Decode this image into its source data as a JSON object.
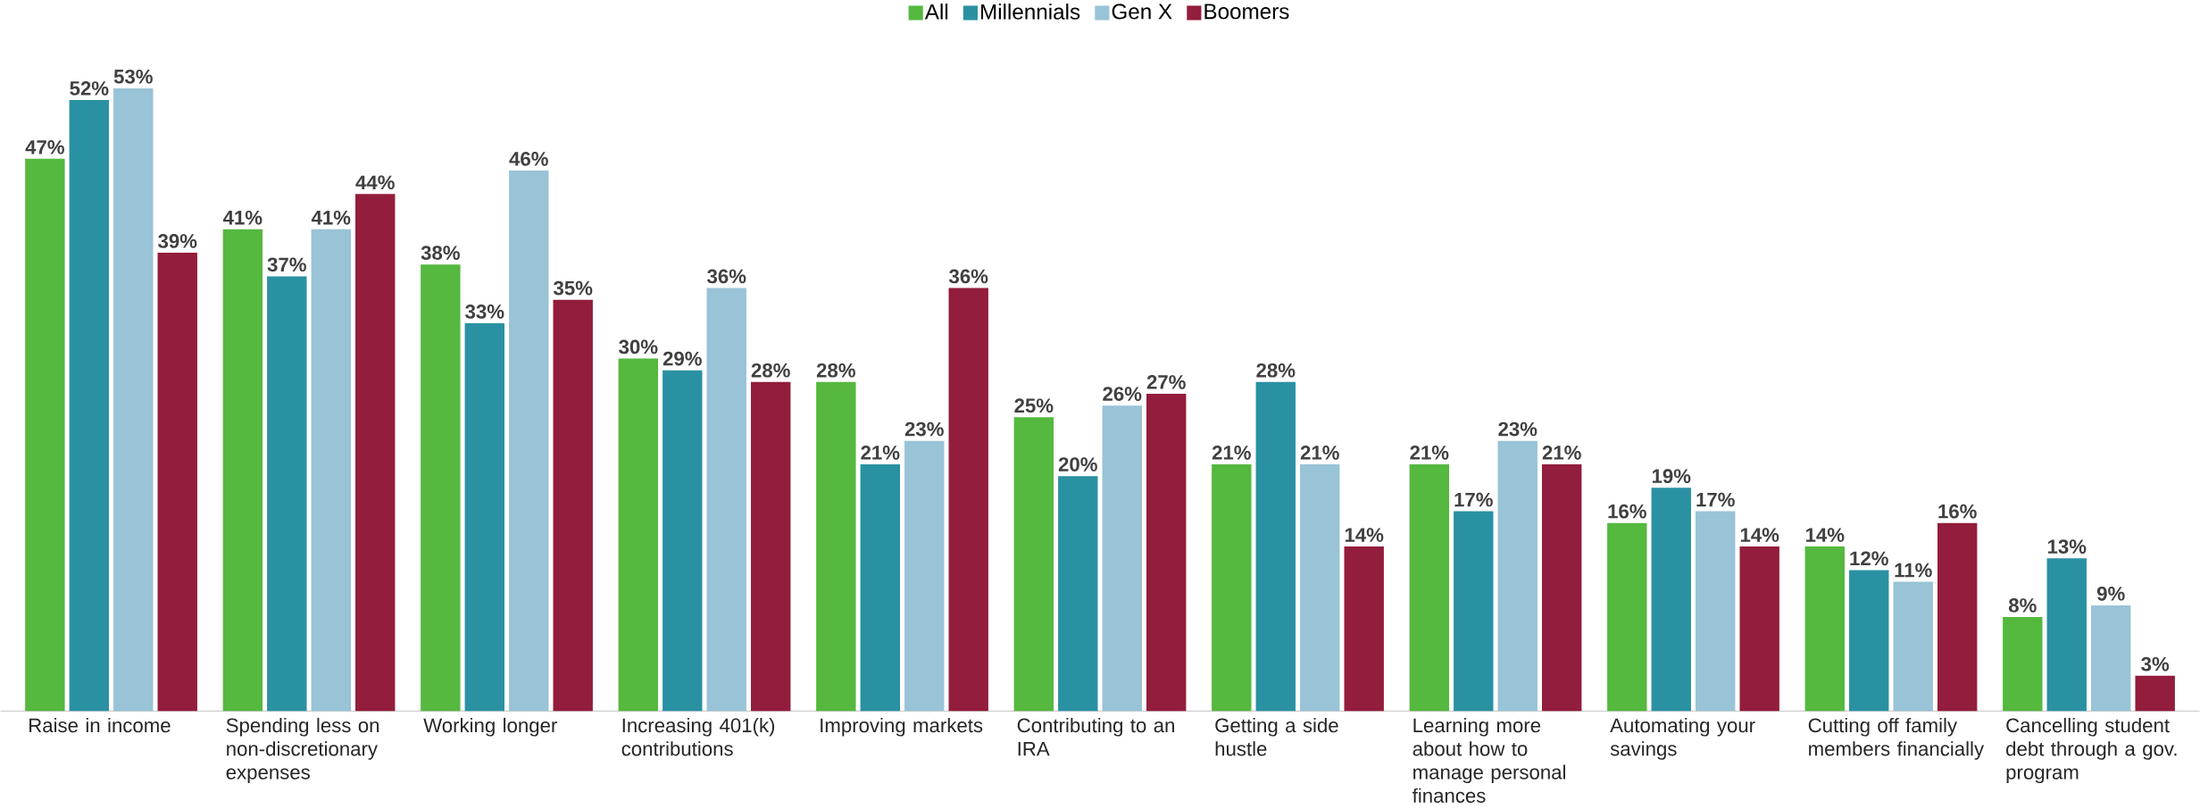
{
  "chart_data": {
    "type": "bar",
    "legend": "top",
    "categories": [
      "Raise in income",
      "Spending less on non-discretionary expenses",
      "Working longer",
      "Increasing 401(k) contributions",
      "Improving markets",
      "Contributing to an IRA",
      "Getting a side hustle",
      "Learning more about how to manage personal finances",
      "Automating your savings",
      "Cutting off family members financially",
      "Cancelling student debt through a gov. program"
    ],
    "series": [
      {
        "name": "All",
        "color": "#55b83f",
        "values": [
          47,
          41,
          38,
          30,
          28,
          25,
          21,
          21,
          16,
          14,
          8
        ],
        "value_labels": [
          "47%",
          "41%",
          "38%",
          "30%",
          "28%",
          "25%",
          "21%",
          "21%",
          "16%",
          "14%",
          "8%"
        ]
      },
      {
        "name": "Millennials",
        "color": "#2a91a3",
        "values": [
          52,
          37,
          33,
          29,
          21,
          20,
          28,
          17,
          19,
          12,
          13
        ],
        "value_labels": [
          "52%",
          "37%",
          "33%",
          "29%",
          "21%",
          "20%",
          "28%",
          "17%",
          "19%",
          "12%",
          "13%"
        ]
      },
      {
        "name": "Gen X",
        "color": "#99c3d6",
        "values": [
          53,
          41,
          46,
          36,
          23,
          26,
          21,
          23,
          17,
          11,
          9
        ],
        "value_labels": [
          "53%",
          "41%",
          "46%",
          "36%",
          "23%",
          "26%",
          "21%",
          "23%",
          "17%",
          "11%",
          "9%"
        ]
      },
      {
        "name": "Boomers",
        "color": "#931d3c",
        "values": [
          39,
          44,
          35,
          28,
          36,
          27,
          14,
          21,
          14,
          16,
          3
        ],
        "value_labels": [
          "39%",
          "44%",
          "35%",
          "28%",
          "36%",
          "27%",
          "14%",
          "21%",
          "14%",
          "16%",
          "3%"
        ]
      }
    ]
  }
}
